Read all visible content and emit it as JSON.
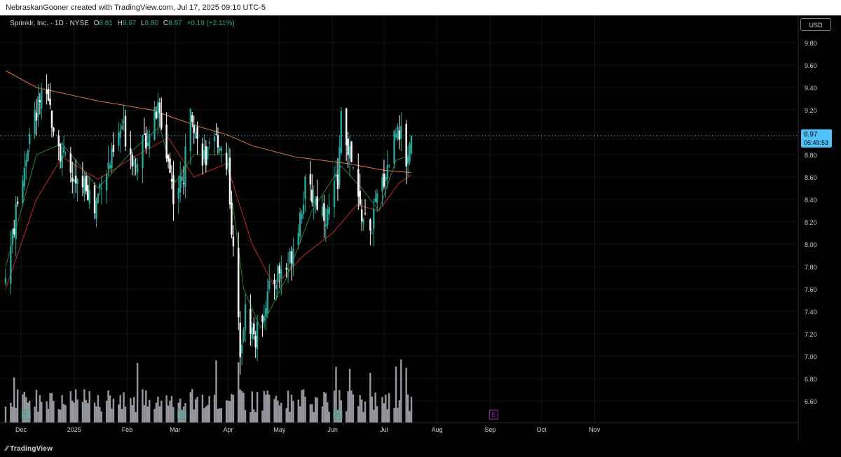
{
  "header": {
    "attribution": "NebraskanGooner created with TradingView.com, Jul 17, 2025 09:10 UTC-5"
  },
  "legend": {
    "symbol": "Sprinklr, Inc. · 1D · NYSE",
    "open_label": "O",
    "open": "8.81",
    "high_label": "H",
    "high": "8.97",
    "low_label": "L",
    "low": "8.80",
    "close_label": "C",
    "close": "8.97",
    "change": "+0.19 (+2.11%)"
  },
  "currency_button": "USD",
  "price_badge": {
    "price": "8.97",
    "countdown": "05:49:53"
  },
  "footer": {
    "brand": "TradingView"
  },
  "colors": {
    "up": "#26a69a",
    "down": "#ffffff",
    "ma_long": "#e0733a",
    "ma_mid": "#c62828",
    "ma_short": "#2e7d32",
    "volume": "#b0b3bb",
    "earnings_past": "#26a69a",
    "earnings_future": "#9c27b0"
  },
  "chart_data": {
    "type": "candlestick",
    "title": "Sprinklr, Inc.",
    "ylabel": "",
    "xlabel": "",
    "ylim": [
      6.5,
      9.95
    ],
    "yticks": [
      6.6,
      6.8,
      7.0,
      7.2,
      7.4,
      7.6,
      7.8,
      8.0,
      8.2,
      8.4,
      8.6,
      8.8,
      9.0,
      9.2,
      9.4,
      9.6,
      9.8
    ],
    "ytick_labels": [
      "6.60",
      "6.80",
      "7.00",
      "7.20",
      "7.40",
      "7.60",
      "7.80",
      "8.00",
      "8.20",
      "8.40",
      "8.60",
      "8.80",
      "9.00",
      "9.20",
      "9.40",
      "9.60",
      "9.80"
    ],
    "xticks": [
      {
        "label": "Dec",
        "date": "2024-12-01"
      },
      {
        "label": "2025",
        "date": "2025-01-01"
      },
      {
        "label": "Feb",
        "date": "2025-02-01"
      },
      {
        "label": "Mar",
        "date": "2025-03-01"
      },
      {
        "label": "Apr",
        "date": "2025-04-01"
      },
      {
        "label": "May",
        "date": "2025-05-01"
      },
      {
        "label": "Jun",
        "date": "2025-06-01"
      },
      {
        "label": "Jul",
        "date": "2025-07-01"
      },
      {
        "label": "Aug",
        "date": "2025-08-01"
      },
      {
        "label": "Sep",
        "date": "2025-09-01"
      },
      {
        "label": "Oct",
        "date": "2025-10-01"
      },
      {
        "label": "Nov",
        "date": "2025-11-01"
      }
    ],
    "last_price": 8.97,
    "earnings_markers": [
      {
        "date": "2024-12-04",
        "label": "E",
        "status": "reported"
      },
      {
        "date": "2025-03-05",
        "label": "E",
        "status": "reported"
      },
      {
        "date": "2025-06-04",
        "label": "E",
        "status": "reported"
      },
      {
        "date": "2025-09-03",
        "label": "E",
        "status": "upcoming"
      }
    ],
    "price_path": [
      [
        "2024-11-22",
        7.7
      ],
      [
        "2024-11-29",
        8.35
      ],
      [
        "2024-12-05",
        8.9
      ],
      [
        "2024-12-12",
        9.3
      ],
      [
        "2024-12-18",
        9.2
      ],
      [
        "2024-12-24",
        8.85
      ],
      [
        "2025-01-02",
        8.5
      ],
      [
        "2025-01-08",
        8.55
      ],
      [
        "2025-01-13",
        8.3
      ],
      [
        "2025-01-17",
        8.6
      ],
      [
        "2025-01-23",
        8.75
      ],
      [
        "2025-01-29",
        9.05
      ],
      [
        "2025-02-05",
        8.75
      ],
      [
        "2025-02-12",
        8.95
      ],
      [
        "2025-02-19",
        9.2
      ],
      [
        "2025-02-25",
        8.75
      ],
      [
        "2025-02-28",
        8.45
      ],
      [
        "2025-03-06",
        8.6
      ],
      [
        "2025-03-10",
        9.3
      ],
      [
        "2025-03-14",
        8.9
      ],
      [
        "2025-03-19",
        8.75
      ],
      [
        "2025-03-26",
        8.95
      ],
      [
        "2025-04-01",
        8.7
      ],
      [
        "2025-04-04",
        7.9
      ],
      [
        "2025-04-08",
        7.1
      ],
      [
        "2025-04-11",
        7.4
      ],
      [
        "2025-04-17",
        7.15
      ],
      [
        "2025-04-23",
        7.5
      ],
      [
        "2025-04-30",
        7.75
      ],
      [
        "2025-05-06",
        7.8
      ],
      [
        "2025-05-12",
        8.2
      ],
      [
        "2025-05-16",
        8.5
      ],
      [
        "2025-05-22",
        8.4
      ],
      [
        "2025-05-29",
        8.25
      ],
      [
        "2025-06-04",
        8.6
      ],
      [
        "2025-06-06",
        9.1
      ],
      [
        "2025-06-11",
        8.8
      ],
      [
        "2025-06-17",
        8.3
      ],
      [
        "2025-06-23",
        8.1
      ],
      [
        "2025-06-27",
        8.4
      ],
      [
        "2025-07-03",
        8.7
      ],
      [
        "2025-07-09",
        9.1
      ],
      [
        "2025-07-14",
        8.75
      ],
      [
        "2025-07-17",
        8.97
      ]
    ],
    "series": [
      {
        "name": "",
        "type": "line",
        "color": "#e0733a",
        "points": [
          [
            "2024-11-22",
            9.55
          ],
          [
            "2024-12-10",
            9.4
          ],
          [
            "2025-01-15",
            9.28
          ],
          [
            "2025-02-15",
            9.2
          ],
          [
            "2025-03-15",
            9.05
          ],
          [
            "2025-03-31",
            8.98
          ],
          [
            "2025-04-15",
            8.88
          ],
          [
            "2025-05-10",
            8.78
          ],
          [
            "2025-06-10",
            8.72
          ],
          [
            "2025-07-01",
            8.66
          ],
          [
            "2025-07-17",
            8.64
          ]
        ]
      },
      {
        "name": "",
        "type": "line",
        "color": "#c62828",
        "points": [
          [
            "2024-11-22",
            7.6
          ],
          [
            "2024-12-10",
            8.4
          ],
          [
            "2024-12-25",
            8.78
          ],
          [
            "2025-01-15",
            8.58
          ],
          [
            "2025-02-05",
            8.78
          ],
          [
            "2025-02-25",
            8.95
          ],
          [
            "2025-03-12",
            8.6
          ],
          [
            "2025-03-31",
            8.72
          ],
          [
            "2025-04-15",
            8.0
          ],
          [
            "2025-04-28",
            7.62
          ],
          [
            "2025-05-15",
            7.9
          ],
          [
            "2025-06-01",
            8.1
          ],
          [
            "2025-06-15",
            8.35
          ],
          [
            "2025-06-28",
            8.3
          ],
          [
            "2025-07-10",
            8.55
          ],
          [
            "2025-07-17",
            8.62
          ]
        ]
      },
      {
        "name": "",
        "type": "line",
        "color": "#2e7d32",
        "points": [
          [
            "2024-11-22",
            7.8
          ],
          [
            "2024-12-10",
            8.8
          ],
          [
            "2024-12-25",
            8.9
          ],
          [
            "2025-01-15",
            8.5
          ],
          [
            "2025-02-05",
            8.85
          ],
          [
            "2025-02-20",
            9.05
          ],
          [
            "2025-03-01",
            8.55
          ],
          [
            "2025-03-12",
            8.8
          ],
          [
            "2025-03-31",
            8.8
          ],
          [
            "2025-04-10",
            7.6
          ],
          [
            "2025-04-20",
            7.25
          ],
          [
            "2025-05-05",
            7.7
          ],
          [
            "2025-05-20",
            8.3
          ],
          [
            "2025-06-06",
            8.7
          ],
          [
            "2025-06-18",
            8.5
          ],
          [
            "2025-06-28",
            8.3
          ],
          [
            "2025-07-08",
            8.75
          ],
          [
            "2025-07-17",
            8.8
          ]
        ]
      }
    ]
  }
}
